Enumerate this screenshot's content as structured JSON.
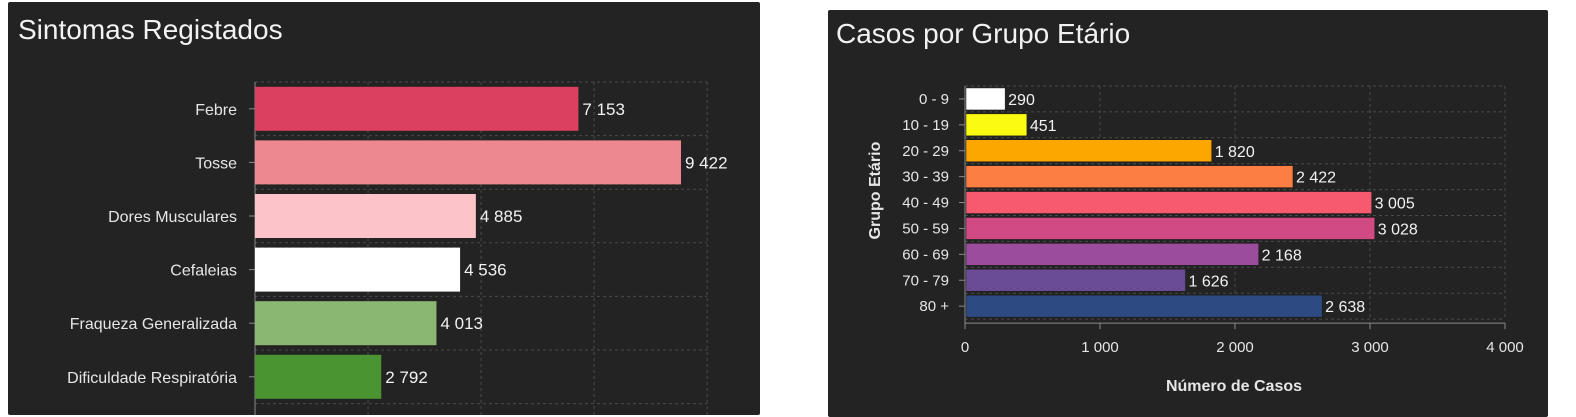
{
  "charts": {
    "symptoms": {
      "title": "Sintomas Registados"
    },
    "age": {
      "title": "Casos por Grupo Etário"
    }
  },
  "chart_data": [
    {
      "type": "bar",
      "orientation": "horizontal",
      "title": "Sintomas Registados",
      "categories": [
        "Febre",
        "Tosse",
        "Dores Musculares",
        "Cefaleias",
        "Fraqueza Generalizada",
        "Dificuldade Respiratória"
      ],
      "values": [
        7153,
        9422,
        4885,
        4536,
        4013,
        2792
      ],
      "value_labels": [
        "7 153",
        "9 422",
        "4 885",
        "4 536",
        "4 013",
        "2 792"
      ],
      "colors": [
        "#dc4060",
        "#ee8890",
        "#fcc3c8",
        "#ffffff",
        "#8ab872",
        "#4a9432"
      ],
      "xlim": [
        0,
        10000
      ],
      "grid": true,
      "xlabel": "",
      "ylabel": ""
    },
    {
      "type": "bar",
      "orientation": "horizontal",
      "title": "Casos por Grupo Etário",
      "categories": [
        "0 - 9",
        "10 - 19",
        "20 - 29",
        "30 - 39",
        "40 - 49",
        "50 - 59",
        "60 - 69",
        "70 - 79",
        "80 +"
      ],
      "values": [
        290,
        451,
        1820,
        2422,
        3005,
        3028,
        2168,
        1626,
        2638
      ],
      "value_labels": [
        "290",
        "451",
        "1 820",
        "2 422",
        "3 005",
        "3 028",
        "2 168",
        "1 626",
        "2 638"
      ],
      "colors": [
        "#ffffff",
        "#fafa12",
        "#fca600",
        "#fc7e42",
        "#f55a6e",
        "#d24a84",
        "#9c4c9c",
        "#6a4c94",
        "#2e4a82"
      ],
      "xlim": [
        0,
        4000
      ],
      "xticks": [
        "0",
        "1 000",
        "2 000",
        "3 000",
        "4 000"
      ],
      "xlabel": "Número de Casos",
      "ylabel": "Grupo Etário",
      "grid": true
    }
  ]
}
